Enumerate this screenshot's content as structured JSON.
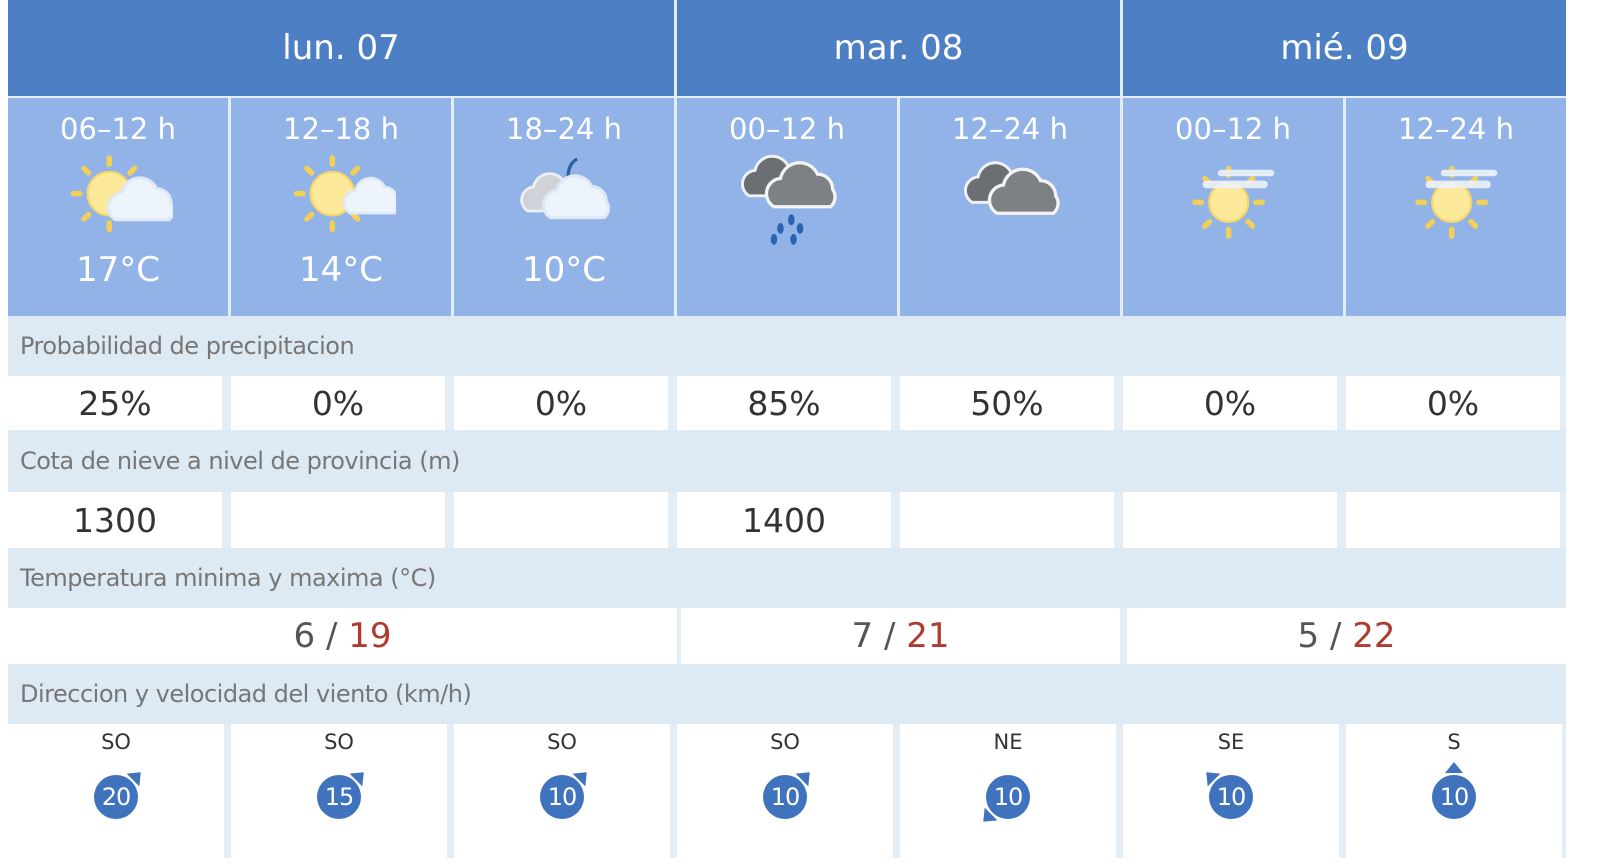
{
  "colors": {
    "header": "#4d7fc5",
    "period": "#91b3e7",
    "label_row": "#dde9f3",
    "max_temp": "#b03a2e",
    "wind_badge": "#3f73bd"
  },
  "days": [
    {
      "label": "lun. 07",
      "min": "6",
      "max": "19",
      "sep": "/"
    },
    {
      "label": "mar. 08",
      "min": "7",
      "max": "21",
      "sep": "/"
    },
    {
      "label": "mié. 09",
      "min": "5",
      "max": "22",
      "sep": "/"
    }
  ],
  "periods": [
    {
      "time": "06–12 h",
      "icon": "sun-cloud-icon",
      "temp": "17°C",
      "precip": "25%",
      "snow": "1300",
      "wind_dir": "SO",
      "wind_speed": "20"
    },
    {
      "time": "12–18 h",
      "icon": "sun-small-cloud-icon",
      "temp": "14°C",
      "precip": "0%",
      "snow": "",
      "wind_dir": "SO",
      "wind_speed": "15"
    },
    {
      "time": "18–24 h",
      "icon": "moon-cloud-icon",
      "temp": "10°C",
      "precip": "0%",
      "snow": "",
      "wind_dir": "SO",
      "wind_speed": "10"
    },
    {
      "time": "00–12 h",
      "icon": "rain-cloud-icon",
      "temp": "",
      "precip": "85%",
      "snow": "1400",
      "wind_dir": "SO",
      "wind_speed": "10"
    },
    {
      "time": "12–24 h",
      "icon": "overcast-cloud-icon",
      "temp": "",
      "precip": "50%",
      "snow": "",
      "wind_dir": "NE",
      "wind_speed": "10"
    },
    {
      "time": "00–12 h",
      "icon": "sun-haze-icon",
      "temp": "",
      "precip": "0%",
      "snow": "",
      "wind_dir": "SE",
      "wind_speed": "10"
    },
    {
      "time": "12–24 h",
      "icon": "sun-haze-icon",
      "temp": "",
      "precip": "0%",
      "snow": "",
      "wind_dir": "S",
      "wind_speed": "10"
    }
  ],
  "labels": {
    "precip": "Probabilidad de precipitacion",
    "snow": "Cota de nieve a nivel de provincia (m)",
    "temp": "Temperatura minima y maxima (°C)",
    "wind": "Direccion y velocidad del viento (km/h)"
  }
}
